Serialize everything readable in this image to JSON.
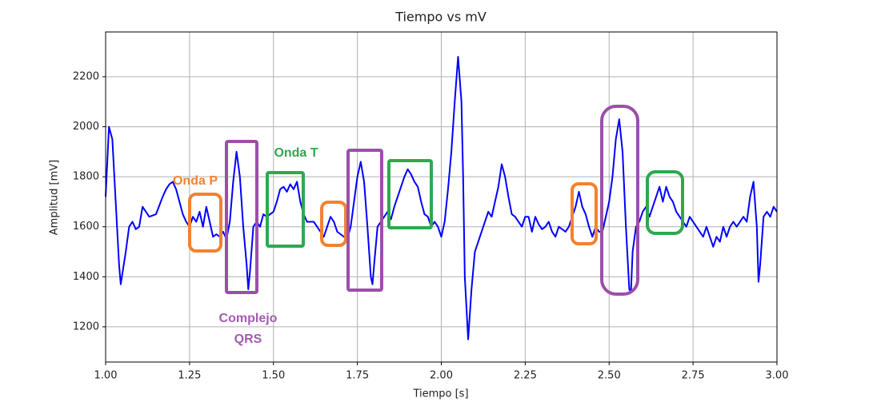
{
  "chart_data": {
    "type": "line",
    "title": "Tiempo vs mV",
    "xlabel": "Tiempo [s]",
    "ylabel": "Amplitud [mV]",
    "color": "#0000ff",
    "grid": true,
    "xlim": [
      1.0,
      3.0
    ],
    "ylim": [
      1059,
      2379
    ],
    "xticks": [
      {
        "value": 1.0,
        "label": "1.00"
      },
      {
        "value": 1.25,
        "label": "1.25"
      },
      {
        "value": 1.5,
        "label": "1.50"
      },
      {
        "value": 1.75,
        "label": "1.75"
      },
      {
        "value": 2.0,
        "label": "2.00"
      },
      {
        "value": 2.25,
        "label": "2.25"
      },
      {
        "value": 2.5,
        "label": "2.50"
      },
      {
        "value": 2.75,
        "label": "2.75"
      },
      {
        "value": 3.0,
        "label": "3.00"
      }
    ],
    "yticks": [
      1200,
      1400,
      1600,
      1800,
      2000,
      2200
    ],
    "annotations": {
      "onda_p": "Onda P",
      "onda_t": "Onda T",
      "qrs": [
        "Complejo",
        "QRS"
      ]
    },
    "x": [
      1.0,
      1.01,
      1.02,
      1.03,
      1.04,
      1.045,
      1.06,
      1.07,
      1.08,
      1.09,
      1.1,
      1.11,
      1.12,
      1.13,
      1.15,
      1.17,
      1.18,
      1.19,
      1.2,
      1.21,
      1.22,
      1.23,
      1.24,
      1.25,
      1.26,
      1.27,
      1.28,
      1.29,
      1.3,
      1.31,
      1.32,
      1.33,
      1.34,
      1.35,
      1.36,
      1.37,
      1.38,
      1.39,
      1.4,
      1.41,
      1.42,
      1.425,
      1.43,
      1.44,
      1.45,
      1.46,
      1.47,
      1.48,
      1.5,
      1.51,
      1.52,
      1.53,
      1.54,
      1.55,
      1.56,
      1.57,
      1.58,
      1.59,
      1.6,
      1.62,
      1.64,
      1.65,
      1.66,
      1.67,
      1.68,
      1.69,
      1.7,
      1.71,
      1.72,
      1.73,
      1.74,
      1.75,
      1.76,
      1.77,
      1.78,
      1.79,
      1.795,
      1.8,
      1.81,
      1.82,
      1.83,
      1.84,
      1.85,
      1.86,
      1.87,
      1.88,
      1.89,
      1.9,
      1.91,
      1.92,
      1.93,
      1.94,
      1.95,
      1.96,
      1.97,
      1.98,
      1.99,
      2.0,
      2.01,
      2.02,
      2.03,
      2.04,
      2.05,
      2.06,
      2.065,
      2.07,
      2.08,
      2.09,
      2.1,
      2.11,
      2.12,
      2.13,
      2.14,
      2.15,
      2.16,
      2.17,
      2.18,
      2.19,
      2.2,
      2.21,
      2.22,
      2.23,
      2.24,
      2.25,
      2.26,
      2.27,
      2.28,
      2.29,
      2.3,
      2.31,
      2.32,
      2.33,
      2.34,
      2.35,
      2.36,
      2.37,
      2.38,
      2.39,
      2.4,
      2.41,
      2.42,
      2.43,
      2.44,
      2.45,
      2.46,
      2.47,
      2.48,
      2.49,
      2.5,
      2.51,
      2.52,
      2.53,
      2.54,
      2.55,
      2.56,
      2.565,
      2.57,
      2.58,
      2.59,
      2.6,
      2.61,
      2.62,
      2.63,
      2.64,
      2.65,
      2.66,
      2.67,
      2.68,
      2.69,
      2.7,
      2.71,
      2.72,
      2.73,
      2.74,
      2.75,
      2.76,
      2.77,
      2.78,
      2.79,
      2.8,
      2.81,
      2.82,
      2.83,
      2.84,
      2.85,
      2.86,
      2.87,
      2.88,
      2.89,
      2.9,
      2.91,
      2.92,
      2.93,
      2.94,
      2.945,
      2.95,
      2.96,
      2.97,
      2.98,
      2.99,
      3.0
    ],
    "values": [
      1720,
      2000,
      1950,
      1700,
      1450,
      1370,
      1500,
      1600,
      1620,
      1590,
      1600,
      1680,
      1660,
      1640,
      1650,
      1720,
      1750,
      1770,
      1780,
      1750,
      1700,
      1650,
      1620,
      1600,
      1640,
      1620,
      1660,
      1600,
      1680,
      1620,
      1560,
      1570,
      1560,
      1580,
      1550,
      1620,
      1780,
      1900,
      1800,
      1600,
      1450,
      1350,
      1420,
      1600,
      1620,
      1600,
      1650,
      1640,
      1660,
      1700,
      1750,
      1760,
      1740,
      1770,
      1750,
      1780,
      1700,
      1650,
      1620,
      1620,
      1580,
      1560,
      1600,
      1640,
      1620,
      1580,
      1570,
      1560,
      1550,
      1600,
      1700,
      1800,
      1860,
      1780,
      1600,
      1400,
      1370,
      1450,
      1600,
      1620,
      1640,
      1660,
      1630,
      1680,
      1720,
      1760,
      1800,
      1830,
      1810,
      1780,
      1760,
      1700,
      1650,
      1640,
      1600,
      1620,
      1600,
      1560,
      1620,
      1750,
      1900,
      2100,
      2280,
      2100,
      1800,
      1400,
      1150,
      1350,
      1500,
      1540,
      1580,
      1620,
      1660,
      1640,
      1700,
      1760,
      1850,
      1800,
      1720,
      1650,
      1640,
      1620,
      1600,
      1640,
      1640,
      1580,
      1640,
      1610,
      1590,
      1600,
      1620,
      1580,
      1560,
      1600,
      1590,
      1580,
      1600,
      1640,
      1680,
      1740,
      1680,
      1650,
      1600,
      1560,
      1600,
      1580,
      1580,
      1640,
      1700,
      1800,
      1950,
      2030,
      1900,
      1600,
      1350,
      1340,
      1500,
      1600,
      1620,
      1660,
      1680,
      1640,
      1680,
      1720,
      1760,
      1700,
      1760,
      1720,
      1700,
      1660,
      1640,
      1620,
      1600,
      1640,
      1620,
      1600,
      1580,
      1560,
      1600,
      1560,
      1520,
      1560,
      1540,
      1600,
      1560,
      1600,
      1620,
      1600,
      1620,
      1640,
      1620,
      1720,
      1780,
      1600,
      1380,
      1450,
      1640,
      1660,
      1640,
      1680,
      1660
    ]
  }
}
